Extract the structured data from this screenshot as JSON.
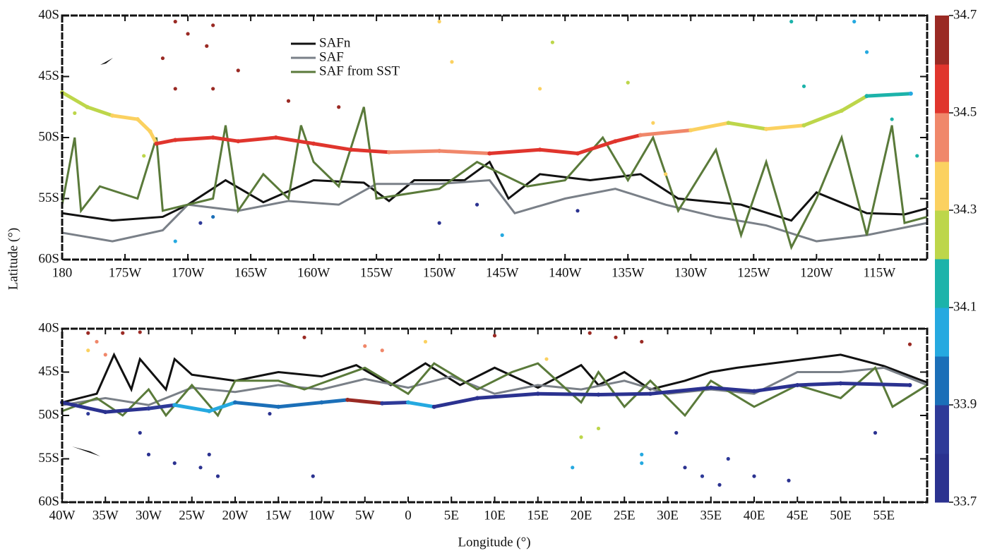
{
  "chart_data": [
    {
      "type": "line",
      "ylabel": "Latitude (°)",
      "xlim": [
        -180,
        -111.2
      ],
      "ylim": [
        -60,
        -40
      ],
      "xticks": [
        {
          "value": -180,
          "label": "180"
        },
        {
          "value": -175,
          "label": "175W"
        },
        {
          "value": -170,
          "label": "170W"
        },
        {
          "value": -165,
          "label": "165W"
        },
        {
          "value": -160,
          "label": "160W"
        },
        {
          "value": -155,
          "label": "155W"
        },
        {
          "value": -150,
          "label": "150W"
        },
        {
          "value": -145,
          "label": "145W"
        },
        {
          "value": -140,
          "label": "140W"
        },
        {
          "value": -135,
          "label": "135W"
        },
        {
          "value": -130,
          "label": "130W"
        },
        {
          "value": -125,
          "label": "125W"
        },
        {
          "value": -120,
          "label": "120W"
        },
        {
          "value": -115,
          "label": "115W"
        }
      ],
      "yticks": [
        {
          "value": -60,
          "label": "60S"
        },
        {
          "value": -55,
          "label": "55S"
        },
        {
          "value": -50,
          "label": "50S"
        },
        {
          "value": -45,
          "label": "45S"
        },
        {
          "value": -40,
          "label": "40S"
        }
      ],
      "series": [
        {
          "name": "SAFn",
          "color": "#111111",
          "x": [
            -180,
            -176,
            -172,
            -170,
            -167,
            -164,
            -160,
            -156,
            -154,
            -152,
            -148,
            -146,
            -144.5,
            -142,
            -138,
            -134,
            -131,
            -126,
            -122,
            -120,
            -116,
            -113,
            -111.2
          ],
          "values": [
            -56.2,
            -56.8,
            -56.5,
            -55.5,
            -53.5,
            -55.3,
            -53.5,
            -53.7,
            -55.2,
            -53.5,
            -53.5,
            -52,
            -55,
            -53,
            -53.5,
            -53,
            -55,
            -55.5,
            -56.8,
            -54.5,
            -56.2,
            -56.3,
            -55.8
          ]
        },
        {
          "name": "SAF",
          "color": "#7a8088",
          "x": [
            -180,
            -176,
            -172,
            -170,
            -166,
            -162,
            -158,
            -155,
            -150,
            -146,
            -144,
            -140,
            -136,
            -132,
            -128,
            -124,
            -120,
            -116,
            -111.2
          ],
          "values": [
            -57.8,
            -58.5,
            -57.6,
            -55.5,
            -56,
            -55.2,
            -55.5,
            -53.8,
            -53.8,
            -53.5,
            -56.2,
            -55,
            -54.2,
            -55.5,
            -56.5,
            -57.2,
            -58.5,
            -58,
            -57
          ]
        },
        {
          "name": "SAF from SST",
          "color": "#5a7a3a",
          "x": [
            -180,
            -179,
            -178.5,
            -177,
            -174,
            -172.5,
            -172,
            -168,
            -167,
            -166,
            -164,
            -162,
            -161,
            -160,
            -158,
            -156,
            -155,
            -150,
            -147,
            -143,
            -140,
            -137,
            -135,
            -133,
            -131,
            -128,
            -126,
            -124,
            -122,
            -120,
            -118,
            -116,
            -114,
            -113,
            -111.2
          ],
          "values": [
            -55.5,
            -50,
            -56,
            -54,
            -55,
            -50,
            -56,
            -55,
            -49,
            -56,
            -53,
            -55,
            -49,
            -52,
            -54,
            -47.5,
            -55,
            -54.2,
            -52,
            -54,
            -53.5,
            -50,
            -53.5,
            -50,
            -56,
            -51,
            -58,
            -52,
            -59,
            -55,
            -50,
            -58,
            -49,
            -57,
            -56.5
          ]
        }
      ],
      "track": {
        "x": [
          -180,
          -178,
          -176,
          -174,
          -173,
          -172.5,
          -171,
          -168,
          -166,
          -163,
          -160,
          -157,
          -154,
          -150,
          -146,
          -142,
          -139,
          -136,
          -134,
          -130,
          -127,
          -124,
          -121,
          -118,
          -116,
          -112.5
        ],
        "y": [
          -46.3,
          -47.5,
          -48.2,
          -48.5,
          -49.5,
          -50.5,
          -50.2,
          -50,
          -50.3,
          -50,
          -50.5,
          -51,
          -51.2,
          -51.1,
          -51.3,
          -51,
          -51.3,
          -50.3,
          -49.8,
          -49.4,
          -48.8,
          -49.3,
          -49,
          -47.8,
          -46.6,
          -46.4
        ],
        "salinity": [
          34.25,
          34.3,
          34.35,
          34.38,
          34.38,
          34.6,
          34.55,
          34.55,
          34.6,
          34.6,
          34.55,
          34.55,
          34.5,
          34.5,
          34.55,
          34.55,
          34.6,
          34.55,
          34.45,
          34.35,
          34.3,
          34.35,
          34.3,
          34.2,
          34.15,
          34.1
        ]
      },
      "points": {
        "x": [
          -171,
          -170,
          -168,
          -168.5,
          -172,
          -166,
          -171,
          -168,
          -162,
          -158,
          -150,
          -149,
          -142,
          -133,
          -132,
          -141,
          -135,
          -179,
          -173.5,
          -121,
          -114,
          -112,
          -122,
          -117,
          -116,
          -145,
          -171,
          -169,
          -147,
          -139,
          -150,
          -168
        ],
        "y": [
          -40.5,
          -41.5,
          -40.8,
          -42.5,
          -43.5,
          -44.5,
          -46,
          -46,
          -47,
          -47.5,
          -40.5,
          -43.8,
          -46,
          -48.8,
          -53,
          -42.2,
          -45.5,
          -48,
          -51.5,
          -45.8,
          -48.5,
          -51.5,
          -40.5,
          -40.5,
          -43,
          -58,
          -58.5,
          -57,
          -55.5,
          -56,
          -57,
          -56.5
        ],
        "salinity": [
          34.65,
          34.65,
          34.65,
          34.65,
          34.65,
          34.65,
          34.65,
          34.65,
          34.65,
          34.65,
          34.35,
          34.35,
          34.35,
          34.35,
          34.35,
          34.25,
          34.25,
          34.25,
          34.25,
          34.15,
          34.15,
          34.15,
          34.15,
          34.05,
          34.05,
          34.05,
          34.05,
          33.85,
          33.75,
          33.75,
          33.75,
          33.95
        ]
      }
    },
    {
      "type": "line",
      "xlabel": "Longitude (°)",
      "xlim": [
        -40,
        60
      ],
      "ylim": [
        -60,
        -40
      ],
      "xticks": [
        {
          "value": -40,
          "label": "40W"
        },
        {
          "value": -35,
          "label": "35W"
        },
        {
          "value": -30,
          "label": "30W"
        },
        {
          "value": -25,
          "label": "25W"
        },
        {
          "value": -20,
          "label": "20W"
        },
        {
          "value": -15,
          "label": "15W"
        },
        {
          "value": -10,
          "label": "10W"
        },
        {
          "value": -5,
          "label": "5W"
        },
        0,
        {
          "value": 5,
          "label": "5E"
        },
        {
          "value": 10,
          "label": "10E"
        },
        {
          "value": 15,
          "label": "15E"
        },
        {
          "value": 20,
          "label": "20E"
        },
        {
          "value": 25,
          "label": "25E"
        },
        {
          "value": 30,
          "label": "30E"
        },
        {
          "value": 35,
          "label": "35E"
        },
        {
          "value": 40,
          "label": "40E"
        },
        {
          "value": 45,
          "label": "45E"
        },
        {
          "value": 50,
          "label": "50E"
        },
        {
          "value": 55,
          "label": "55E"
        }
      ],
      "yticks": [
        {
          "value": -60,
          "label": "60S"
        },
        {
          "value": -55,
          "label": "55S"
        },
        {
          "value": -50,
          "label": "50S"
        },
        {
          "value": -45,
          "label": "45S"
        },
        {
          "value": -40,
          "label": "40S"
        }
      ],
      "series": [
        {
          "color": "#111111",
          "x": [
            -40,
            -36,
            -34,
            -32,
            -31,
            -28,
            -27,
            -25,
            -20,
            -15,
            -10,
            -6,
            -2,
            2,
            6,
            10,
            15,
            20,
            22,
            25,
            28,
            32,
            35,
            38,
            42,
            46,
            50,
            55,
            60
          ],
          "values": [
            -48.5,
            -47.5,
            -43,
            -47,
            -43.5,
            -47,
            -43.5,
            -45.3,
            -46,
            -45,
            -45.5,
            -44.2,
            -46.5,
            -44,
            -46.5,
            -44.5,
            -46.8,
            -44.2,
            -46.5,
            -45,
            -47,
            -46,
            -45,
            -44.5,
            -44,
            -43.5,
            -43,
            -44.3,
            -46.2
          ]
        },
        {
          "color": "#7a8088",
          "x": [
            -40,
            -35,
            -30,
            -25,
            -20,
            -15,
            -10,
            -5,
            0,
            5,
            10,
            15,
            20,
            25,
            30,
            35,
            40,
            45,
            50,
            55,
            60
          ],
          "values": [
            -48.8,
            -48,
            -48.8,
            -46.8,
            -47.3,
            -46.5,
            -47,
            -45.8,
            -46.8,
            -45.5,
            -47.5,
            -46.5,
            -47,
            -46,
            -47.5,
            -47,
            -47.5,
            -45,
            -45,
            -44.5,
            -46.5
          ]
        },
        {
          "color": "#5a7a3a",
          "x": [
            -40,
            -36,
            -33,
            -30,
            -28,
            -25,
            -22,
            -20,
            -15,
            -12,
            -5,
            0,
            3,
            8,
            12,
            15,
            20,
            22,
            25,
            28,
            32,
            35,
            40,
            45,
            50,
            54,
            56,
            60
          ],
          "values": [
            -49.5,
            -48,
            -50,
            -47,
            -50,
            -46.5,
            -50,
            -46,
            -46,
            -47,
            -44.5,
            -47.5,
            -44,
            -47,
            -45,
            -44,
            -48.5,
            -45,
            -49,
            -46,
            -50,
            -46,
            -49,
            -46.5,
            -48,
            -44.5,
            -49,
            -46.5
          ]
        }
      ],
      "track": {
        "x": [
          -40,
          -35,
          -30,
          -27,
          -23,
          -20,
          -15,
          -10,
          -7,
          -3,
          0,
          3,
          8,
          15,
          22,
          28,
          35,
          40,
          45,
          50,
          58
        ],
        "y": [
          -48.5,
          -49.6,
          -49.2,
          -48.8,
          -49.5,
          -48.5,
          -49,
          -48.5,
          -48.2,
          -48.6,
          -48.5,
          -49,
          -48,
          -47.5,
          -47.6,
          -47.5,
          -46.8,
          -47.2,
          -46.5,
          -46.3,
          -46.5
        ],
        "salinity": [
          33.75,
          33.75,
          33.9,
          34.05,
          34.05,
          34,
          33.95,
          33.95,
          34.65,
          33.85,
          34.05,
          33.75,
          33.75,
          33.75,
          33.75,
          33.75,
          33.75,
          33.75,
          33.75,
          33.75,
          33.75
        ]
      },
      "points": {
        "x": [
          -37,
          -33,
          -31,
          -12,
          10,
          21,
          24,
          27,
          58,
          -36,
          -35,
          -5,
          -3,
          -37,
          2,
          16,
          20,
          22,
          19,
          27,
          27,
          -31,
          -30,
          -27,
          -24,
          -23,
          -22,
          -11,
          31,
          32,
          34,
          36,
          37,
          40,
          44,
          54,
          -37,
          -16
        ],
        "y": [
          -40.5,
          -40.5,
          -40.4,
          -41,
          -40.8,
          -40.5,
          -41,
          -41.5,
          -41.8,
          -41.5,
          -43,
          -42,
          -42.5,
          -42.5,
          -41.5,
          -43.5,
          -52.5,
          -51.5,
          -56,
          -54.5,
          -55.5,
          -52,
          -54.5,
          -55.5,
          -56,
          -54.5,
          -57,
          -57,
          -52,
          -56,
          -57,
          -58,
          -55,
          -57,
          -57.5,
          -52,
          -49.8,
          -49.8
        ],
        "salinity": [
          34.65,
          34.65,
          34.65,
          34.65,
          34.65,
          34.65,
          34.65,
          34.65,
          34.65,
          34.45,
          34.45,
          34.45,
          34.45,
          34.35,
          34.35,
          34.35,
          34.25,
          34.25,
          34.05,
          34.05,
          34.05,
          33.8,
          33.8,
          33.8,
          33.8,
          33.8,
          33.8,
          33.75,
          33.8,
          33.8,
          33.85,
          33.8,
          33.85,
          33.8,
          33.8,
          33.8,
          33.85,
          33.8
        ]
      }
    }
  ],
  "colorbar": {
    "lim": [
      33.7,
      34.7
    ],
    "ticks": [
      34.7,
      34.5,
      34.3,
      34.1,
      33.9,
      33.7
    ],
    "colors": [
      "#2b3290",
      "#2e3a98",
      "#1b6fb8",
      "#25a9e0",
      "#1cb3aa",
      "#bdd64a",
      "#fbd160",
      "#f0876a",
      "#e0352d",
      "#9a2a24"
    ]
  }
}
